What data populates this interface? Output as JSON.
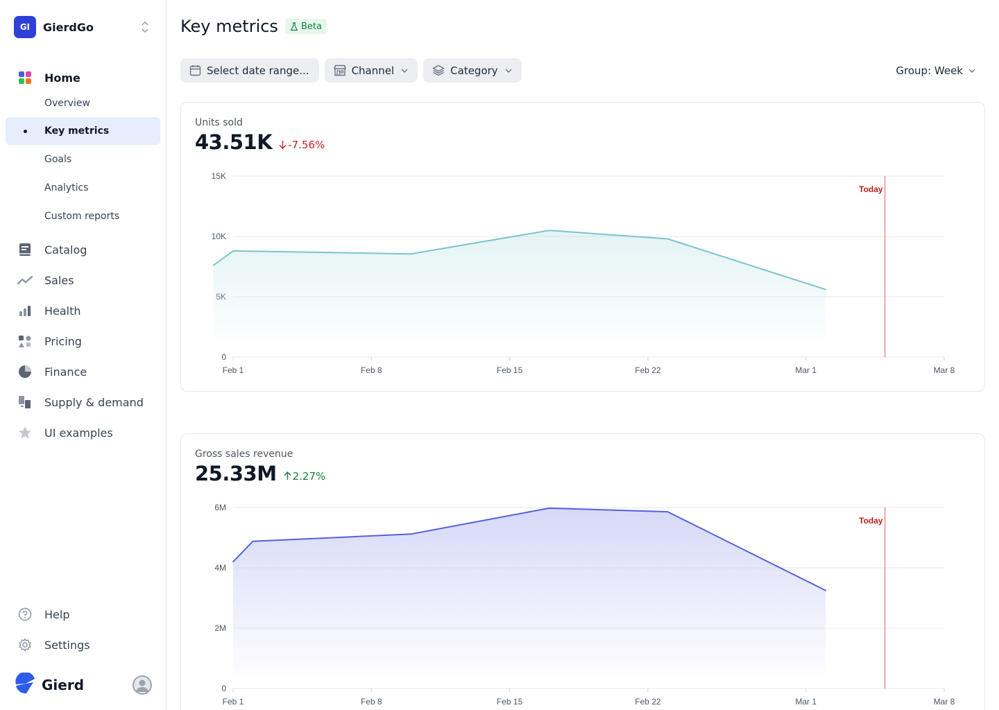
{
  "org": {
    "initials": "GI",
    "name": "GierdGo"
  },
  "nav": {
    "home": "Home",
    "home_subitems": [
      "Overview",
      "Key metrics",
      "Goals",
      "Analytics",
      "Custom reports"
    ],
    "active_subitem": "Key metrics",
    "sections": [
      {
        "label": "Catalog",
        "icon": "book-icon"
      },
      {
        "label": "Sales",
        "icon": "trend-line-icon"
      },
      {
        "label": "Health",
        "icon": "bar-chart-icon"
      },
      {
        "label": "Pricing",
        "icon": "shapes-icon"
      },
      {
        "label": "Finance",
        "icon": "pie-chart-icon"
      },
      {
        "label": "Supply & demand",
        "icon": "transfer-icon"
      },
      {
        "label": "UI examples",
        "icon": "star-icon"
      }
    ],
    "help": "Help",
    "settings": "Settings"
  },
  "brand": {
    "name": "Gierd"
  },
  "page": {
    "title": "Key metrics",
    "badge": "Beta"
  },
  "filters": {
    "date_range": "Select date range...",
    "channel": "Channel",
    "category": "Category",
    "group": "Group: Week"
  },
  "metrics": {
    "units": {
      "label": "Units sold",
      "value": "43.51K",
      "delta": "-7.56%",
      "direction": "down"
    },
    "revenue": {
      "label": "Gross sales revenue",
      "value": "25.33M",
      "delta": "2.27%",
      "direction": "up"
    }
  },
  "colors": {
    "accent": "#2f3fd8",
    "units_line": "#7cc3cc",
    "revenue_line": "#5560dc",
    "today_line": "#e88a8a",
    "down": "#c81e1e",
    "up": "#15803d"
  },
  "chart_data": [
    {
      "type": "area",
      "title": "Units sold",
      "x": [
        "Jan 31",
        "Feb 1",
        "Feb 10",
        "Feb 17",
        "Feb 23",
        "Mar 2"
      ],
      "values": [
        7600,
        8800,
        8550,
        10500,
        9800,
        5600
      ],
      "xticks": [
        "Feb 1",
        "Feb 8",
        "Feb 15",
        "Feb 22",
        "Mar 1",
        "Mar 8"
      ],
      "yticks": [
        "0",
        "5K",
        "10K",
        "15K"
      ],
      "ylim": [
        0,
        15000
      ],
      "xlim": [
        "Feb 1",
        "Mar 8"
      ],
      "annotation": "Today",
      "today": "Mar 5",
      "grid": true
    },
    {
      "type": "area",
      "title": "Gross sales revenue",
      "x": [
        "Feb 1",
        "Feb 2",
        "Feb 10",
        "Feb 17",
        "Feb 23",
        "Mar 2"
      ],
      "values": [
        4200000,
        4880000,
        5120000,
        5980000,
        5860000,
        3250000
      ],
      "xticks": [
        "Feb 1",
        "Feb 8",
        "Feb 15",
        "Feb 22",
        "Mar 1",
        "Mar 8"
      ],
      "yticks": [
        "0",
        "2M",
        "4M",
        "6M"
      ],
      "ylim": [
        0,
        6000000
      ],
      "xlim": [
        "Feb 1",
        "Mar 8"
      ],
      "annotation": "Today",
      "today": "Mar 5",
      "grid": true
    }
  ]
}
